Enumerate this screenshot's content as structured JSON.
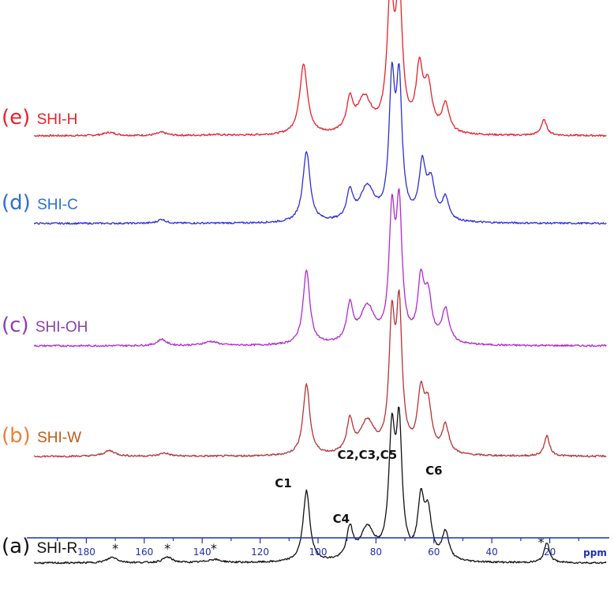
{
  "chart_data": {
    "type": "line",
    "xlabel": "ppm",
    "xlim": [
      200,
      0
    ],
    "x_reversed": true,
    "x_ticks": [
      180,
      160,
      140,
      120,
      100,
      80,
      60,
      40,
      20
    ],
    "grid": false,
    "series": [
      {
        "prefix": "(e)",
        "name": "SHI-H",
        "color": "#e8202a",
        "peaks": [
          {
            "ppm": 172,
            "h": 0.04,
            "w": 2.5
          },
          {
            "ppm": 154,
            "h": 0.04,
            "w": 2.0
          },
          {
            "ppm": 136,
            "h": 0.01,
            "w": 4.0
          },
          {
            "ppm": 105,
            "h": 0.88,
            "w": 1.6
          },
          {
            "ppm": 89,
            "h": 0.38,
            "w": 1.3
          },
          {
            "ppm": 84,
            "h": 0.43,
            "w": 3.0
          },
          {
            "ppm": 75,
            "h": 1.62,
            "w": 1.4
          },
          {
            "ppm": 72,
            "h": 1.66,
            "w": 1.3
          },
          {
            "ppm": 65,
            "h": 0.75,
            "w": 1.4
          },
          {
            "ppm": 62,
            "h": 0.55,
            "w": 1.6
          },
          {
            "ppm": 56,
            "h": 0.35,
            "w": 1.5
          },
          {
            "ppm": 22,
            "h": 0.19,
            "w": 1.2
          }
        ]
      },
      {
        "prefix": "(d)",
        "name": "SHI-C",
        "color": "#2c2fd6",
        "peaks": [
          {
            "ppm": 154,
            "h": 0.05,
            "w": 1.6
          },
          {
            "ppm": 104,
            "h": 0.88,
            "w": 1.5
          },
          {
            "ppm": 89,
            "h": 0.35,
            "w": 1.3
          },
          {
            "ppm": 83,
            "h": 0.42,
            "w": 3.0
          },
          {
            "ppm": 74.5,
            "h": 1.62,
            "w": 1.2
          },
          {
            "ppm": 72,
            "h": 1.62,
            "w": 1.2
          },
          {
            "ppm": 64,
            "h": 0.66,
            "w": 1.4
          },
          {
            "ppm": 61,
            "h": 0.45,
            "w": 1.6
          },
          {
            "ppm": 56,
            "h": 0.28,
            "w": 1.4
          }
        ]
      },
      {
        "prefix": "(c)",
        "name": "SHI-OH",
        "color": "#b02ad0",
        "peaks": [
          {
            "ppm": 154,
            "h": 0.08,
            "w": 1.8
          },
          {
            "ppm": 137,
            "h": 0.05,
            "w": 3.0
          },
          {
            "ppm": 104,
            "h": 0.92,
            "w": 1.4
          },
          {
            "ppm": 89,
            "h": 0.45,
            "w": 1.3
          },
          {
            "ppm": 83,
            "h": 0.45,
            "w": 3.0
          },
          {
            "ppm": 74.5,
            "h": 1.5,
            "w": 1.2
          },
          {
            "ppm": 72,
            "h": 1.6,
            "w": 1.2
          },
          {
            "ppm": 64.5,
            "h": 0.72,
            "w": 1.3
          },
          {
            "ppm": 62,
            "h": 0.55,
            "w": 1.5
          },
          {
            "ppm": 56,
            "h": 0.42,
            "w": 1.5
          }
        ]
      },
      {
        "prefix": "(b)",
        "name": "SHI-W",
        "color": "#b83236",
        "peaks": [
          {
            "ppm": 172,
            "h": 0.07,
            "w": 2.4
          },
          {
            "ppm": 153,
            "h": 0.04,
            "w": 2.0
          },
          {
            "ppm": 104,
            "h": 0.88,
            "w": 1.4
          },
          {
            "ppm": 89,
            "h": 0.4,
            "w": 1.3
          },
          {
            "ppm": 83,
            "h": 0.4,
            "w": 3.0
          },
          {
            "ppm": 74.5,
            "h": 1.55,
            "w": 1.2
          },
          {
            "ppm": 72,
            "h": 1.7,
            "w": 1.2
          },
          {
            "ppm": 64.5,
            "h": 0.7,
            "w": 1.4
          },
          {
            "ppm": 62,
            "h": 0.55,
            "w": 1.5
          },
          {
            "ppm": 56,
            "h": 0.35,
            "w": 1.4
          },
          {
            "ppm": 21,
            "h": 0.25,
            "w": 1.1
          }
        ]
      },
      {
        "prefix": "(a)",
        "name": "SHI-R",
        "color": "#111111",
        "peaks": [
          {
            "ppm": 171,
            "h": 0.07,
            "w": 2.2
          },
          {
            "ppm": 152,
            "h": 0.07,
            "w": 2.0
          },
          {
            "ppm": 136,
            "h": 0.04,
            "w": 3.0
          },
          {
            "ppm": 104,
            "h": 0.88,
            "w": 1.4
          },
          {
            "ppm": 89,
            "h": 0.38,
            "w": 1.3
          },
          {
            "ppm": 83,
            "h": 0.4,
            "w": 3.0
          },
          {
            "ppm": 74.5,
            "h": 1.5,
            "w": 1.3
          },
          {
            "ppm": 72,
            "h": 1.55,
            "w": 1.2
          },
          {
            "ppm": 64.5,
            "h": 0.7,
            "w": 1.3
          },
          {
            "ppm": 62,
            "h": 0.55,
            "w": 1.5
          },
          {
            "ppm": 56,
            "h": 0.35,
            "w": 1.4
          },
          {
            "ppm": 21,
            "h": 0.25,
            "w": 1.1
          }
        ]
      }
    ],
    "annotations": [
      {
        "text": "C1",
        "ppm": 112
      },
      {
        "text": "C4",
        "ppm": 92
      },
      {
        "text": "C2,C3,C5",
        "ppm": 83
      },
      {
        "text": "C6",
        "ppm": 60
      }
    ],
    "spinning_sidebands": [
      {
        "text": "*",
        "ppm": 170
      },
      {
        "text": "*",
        "ppm": 152
      },
      {
        "text": "*",
        "ppm": 136
      },
      {
        "text": "*",
        "ppm": 23
      }
    ]
  },
  "colors": {
    "axis": "#1f2fb5",
    "prefix_e": "#e8202a",
    "prefix_d": "#2a6fd6",
    "prefix_c": "#8a3fb0",
    "prefix_b": "#e8823a",
    "prefix_a": "#111111"
  }
}
